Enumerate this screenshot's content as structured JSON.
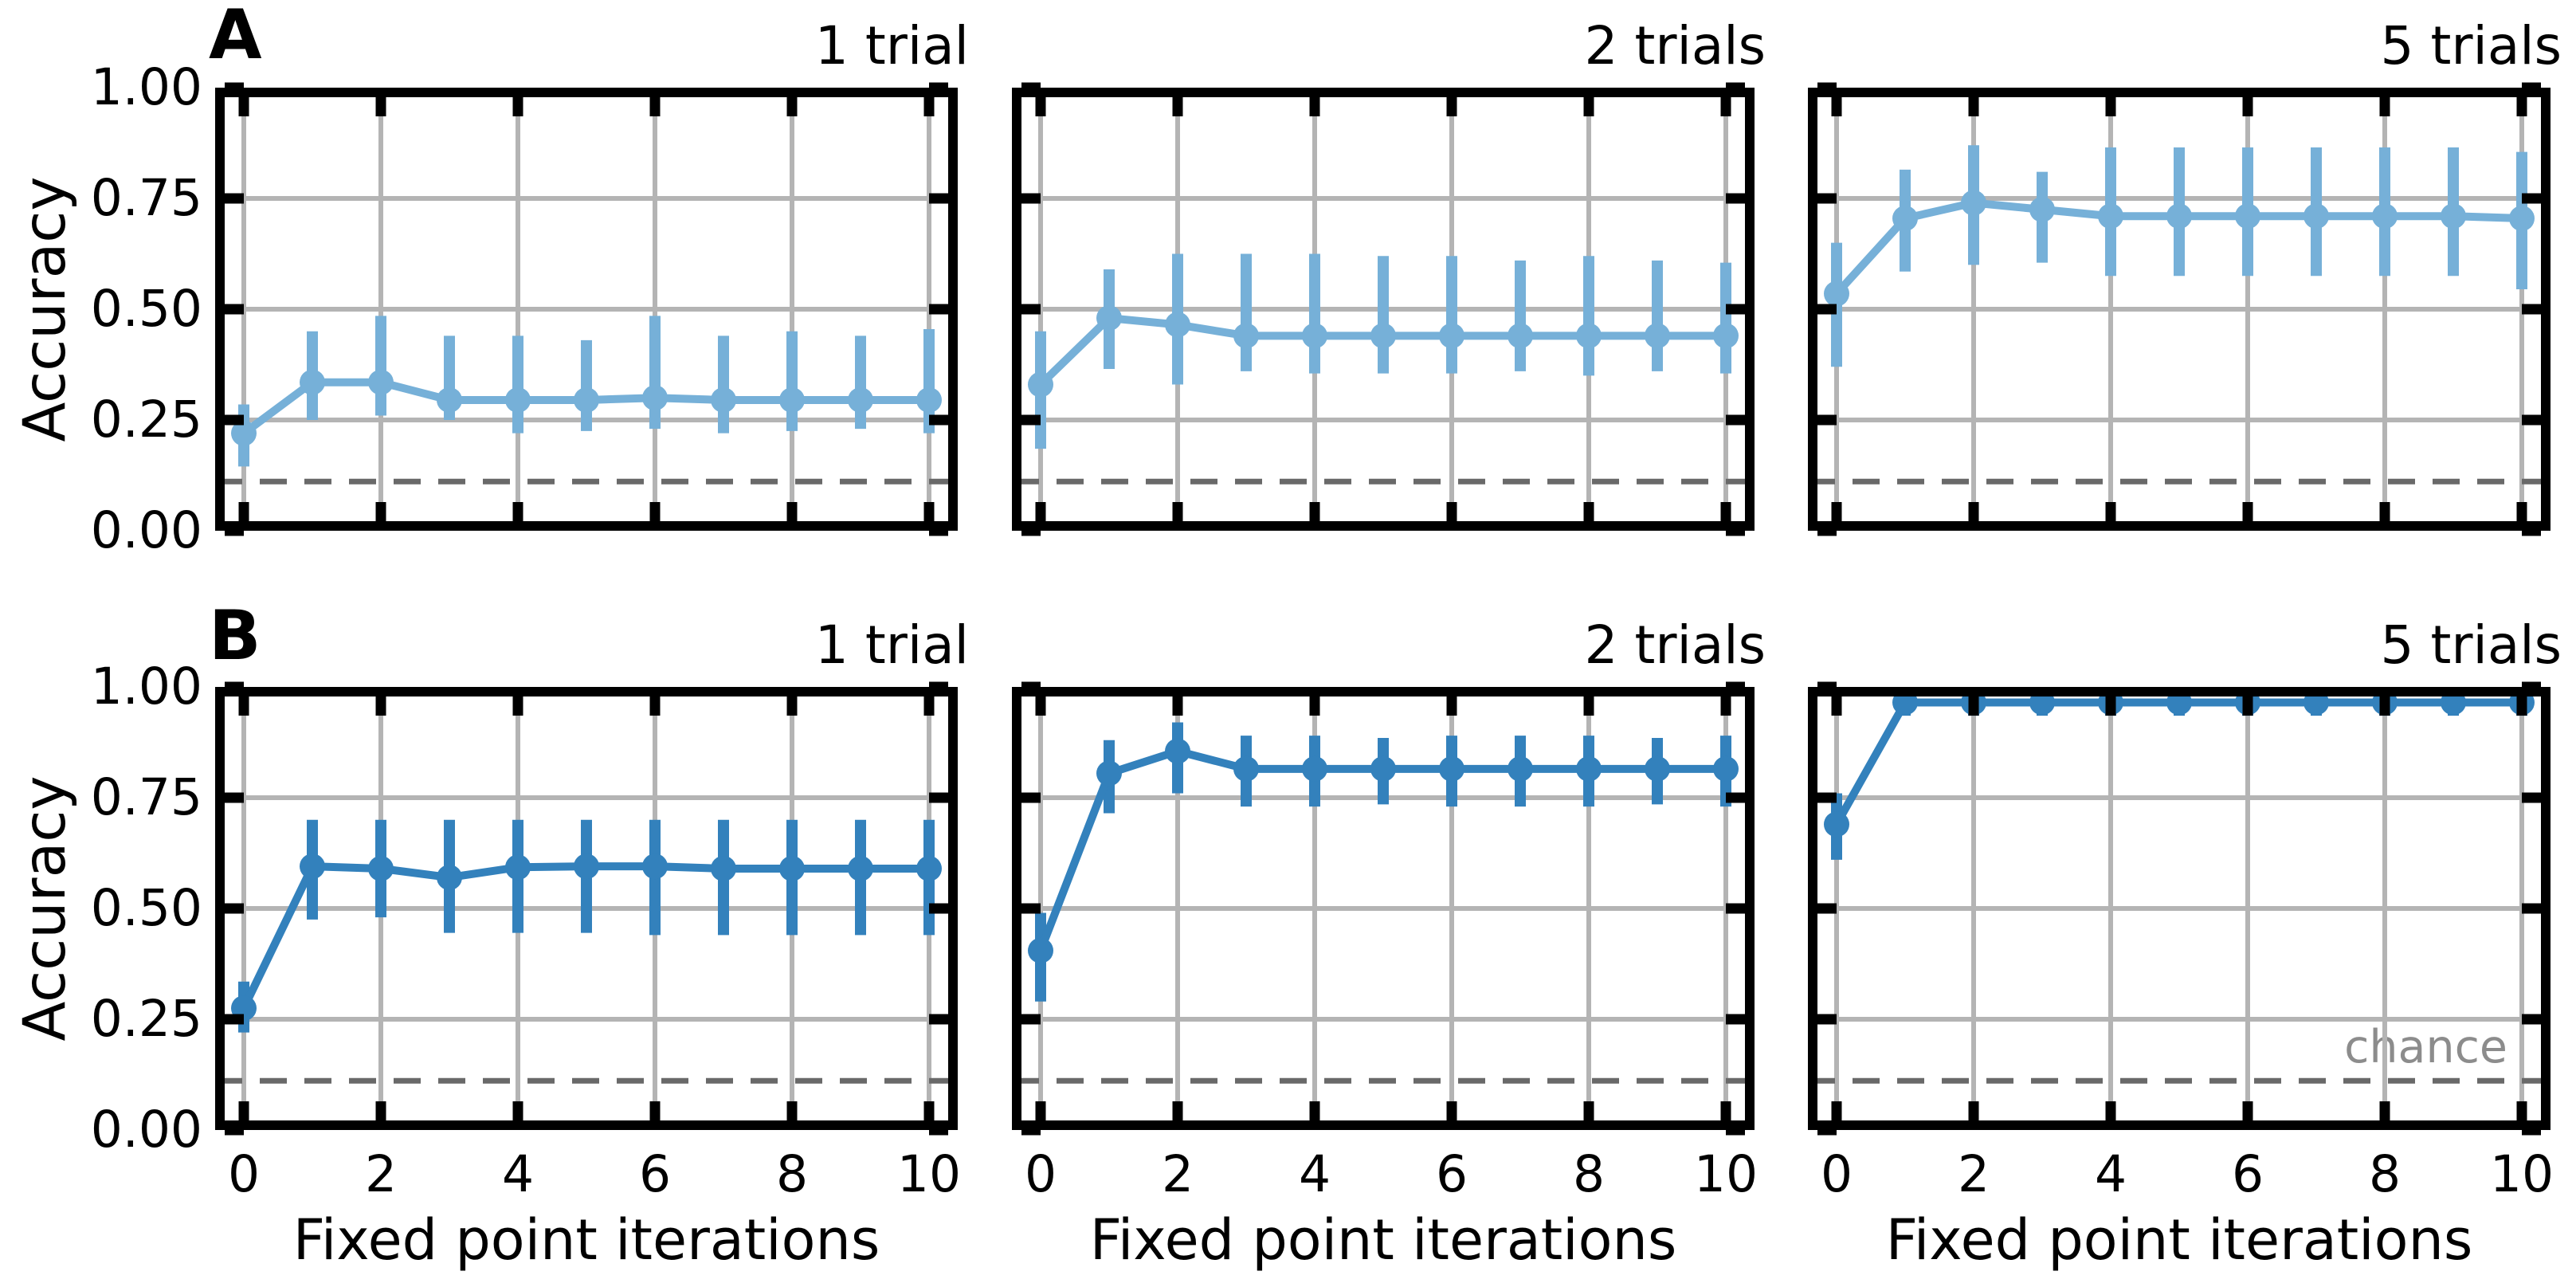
{
  "chart_data": {
    "type": "line",
    "subplot_grid": "2 rows x 3 columns, shared axes",
    "x": [
      0,
      1,
      2,
      3,
      4,
      5,
      6,
      7,
      8,
      9,
      10
    ],
    "x_ticks": [
      0,
      2,
      4,
      6,
      8,
      10
    ],
    "x_tick_labels": [
      "0",
      "2",
      "4",
      "6",
      "8",
      "10"
    ],
    "y_tick_values": [
      0,
      0.25,
      0.5,
      0.75,
      1.0
    ],
    "y_tick_labels": [
      "0.00",
      "0.25",
      "0.50",
      "0.75",
      "1.00"
    ],
    "ylim": [
      0,
      1
    ],
    "xlabel": "Fixed point iterations",
    "ylabel": "Accuracy",
    "grid": true,
    "legend_position": "none",
    "chance_level": 0.111,
    "chance_label": "chance",
    "colors": {
      "row_a_series": "#76b0d8",
      "row_b_series": "#3381bc",
      "grid": "#b4b4b4",
      "chance_line": "#696969",
      "chance_text": "#8c8c8c",
      "axis": "#000000"
    },
    "rows": [
      {
        "label": "A",
        "color": "#76b0d8",
        "panels": [
          {
            "title": "1 trial",
            "mean": [
              0.22,
              0.335,
              0.335,
              0.295,
              0.295,
              0.295,
              0.3,
              0.295,
              0.295,
              0.295,
              0.295
            ],
            "err_lo": [
              0.145,
              0.25,
              0.26,
              0.25,
              0.22,
              0.225,
              0.23,
              0.22,
              0.225,
              0.23,
              0.22
            ],
            "err_hi": [
              0.285,
              0.45,
              0.485,
              0.44,
              0.44,
              0.43,
              0.485,
              0.44,
              0.45,
              0.44,
              0.455
            ]
          },
          {
            "title": "2 trials",
            "mean": [
              0.33,
              0.48,
              0.465,
              0.44,
              0.44,
              0.44,
              0.44,
              0.44,
              0.44,
              0.44,
              0.44
            ],
            "err_lo": [
              0.185,
              0.365,
              0.33,
              0.36,
              0.355,
              0.355,
              0.355,
              0.36,
              0.35,
              0.36,
              0.355
            ],
            "err_hi": [
              0.45,
              0.59,
              0.625,
              0.625,
              0.625,
              0.62,
              0.62,
              0.61,
              0.62,
              0.61,
              0.605
            ]
          },
          {
            "title": "5 trials",
            "mean": [
              0.535,
              0.705,
              0.74,
              0.725,
              0.71,
              0.71,
              0.71,
              0.71,
              0.71,
              0.71,
              0.705
            ],
            "err_lo": [
              0.37,
              0.585,
              0.6,
              0.605,
              0.575,
              0.575,
              0.575,
              0.575,
              0.575,
              0.575,
              0.545
            ],
            "err_hi": [
              0.65,
              0.815,
              0.87,
              0.81,
              0.865,
              0.865,
              0.865,
              0.865,
              0.865,
              0.865,
              0.855
            ]
          }
        ]
      },
      {
        "label": "B",
        "color": "#3381bc",
        "panels": [
          {
            "title": "1 trial",
            "mean": [
              0.275,
              0.595,
              0.59,
              0.57,
              0.593,
              0.595,
              0.595,
              0.59,
              0.59,
              0.59,
              0.59
            ],
            "err_lo": [
              0.22,
              0.475,
              0.48,
              0.445,
              0.445,
              0.445,
              0.44,
              0.44,
              0.44,
              0.44,
              0.44
            ],
            "err_hi": [
              0.335,
              0.7,
              0.7,
              0.7,
              0.7,
              0.7,
              0.7,
              0.7,
              0.7,
              0.7,
              0.7
            ]
          },
          {
            "title": "2 trials",
            "mean": [
              0.405,
              0.805,
              0.855,
              0.815,
              0.815,
              0.815,
              0.815,
              0.815,
              0.815,
              0.815,
              0.815
            ],
            "err_lo": [
              0.29,
              0.715,
              0.76,
              0.73,
              0.73,
              0.735,
              0.73,
              0.73,
              0.73,
              0.735,
              0.73
            ],
            "err_hi": [
              0.49,
              0.88,
              0.92,
              0.89,
              0.89,
              0.885,
              0.89,
              0.89,
              0.89,
              0.885,
              0.89
            ]
          },
          {
            "title": "5 trials",
            "mean": [
              0.69,
              0.965,
              0.965,
              0.965,
              0.965,
              0.965,
              0.965,
              0.965,
              0.965,
              0.965,
              0.965
            ],
            "err_lo": [
              0.61,
              0.935,
              0.935,
              0.935,
              0.935,
              0.935,
              0.935,
              0.935,
              0.935,
              0.935,
              0.935
            ],
            "err_hi": [
              0.76,
              0.985,
              0.985,
              0.985,
              0.985,
              0.985,
              0.985,
              0.985,
              0.985,
              0.985,
              0.985
            ]
          }
        ]
      }
    ]
  }
}
